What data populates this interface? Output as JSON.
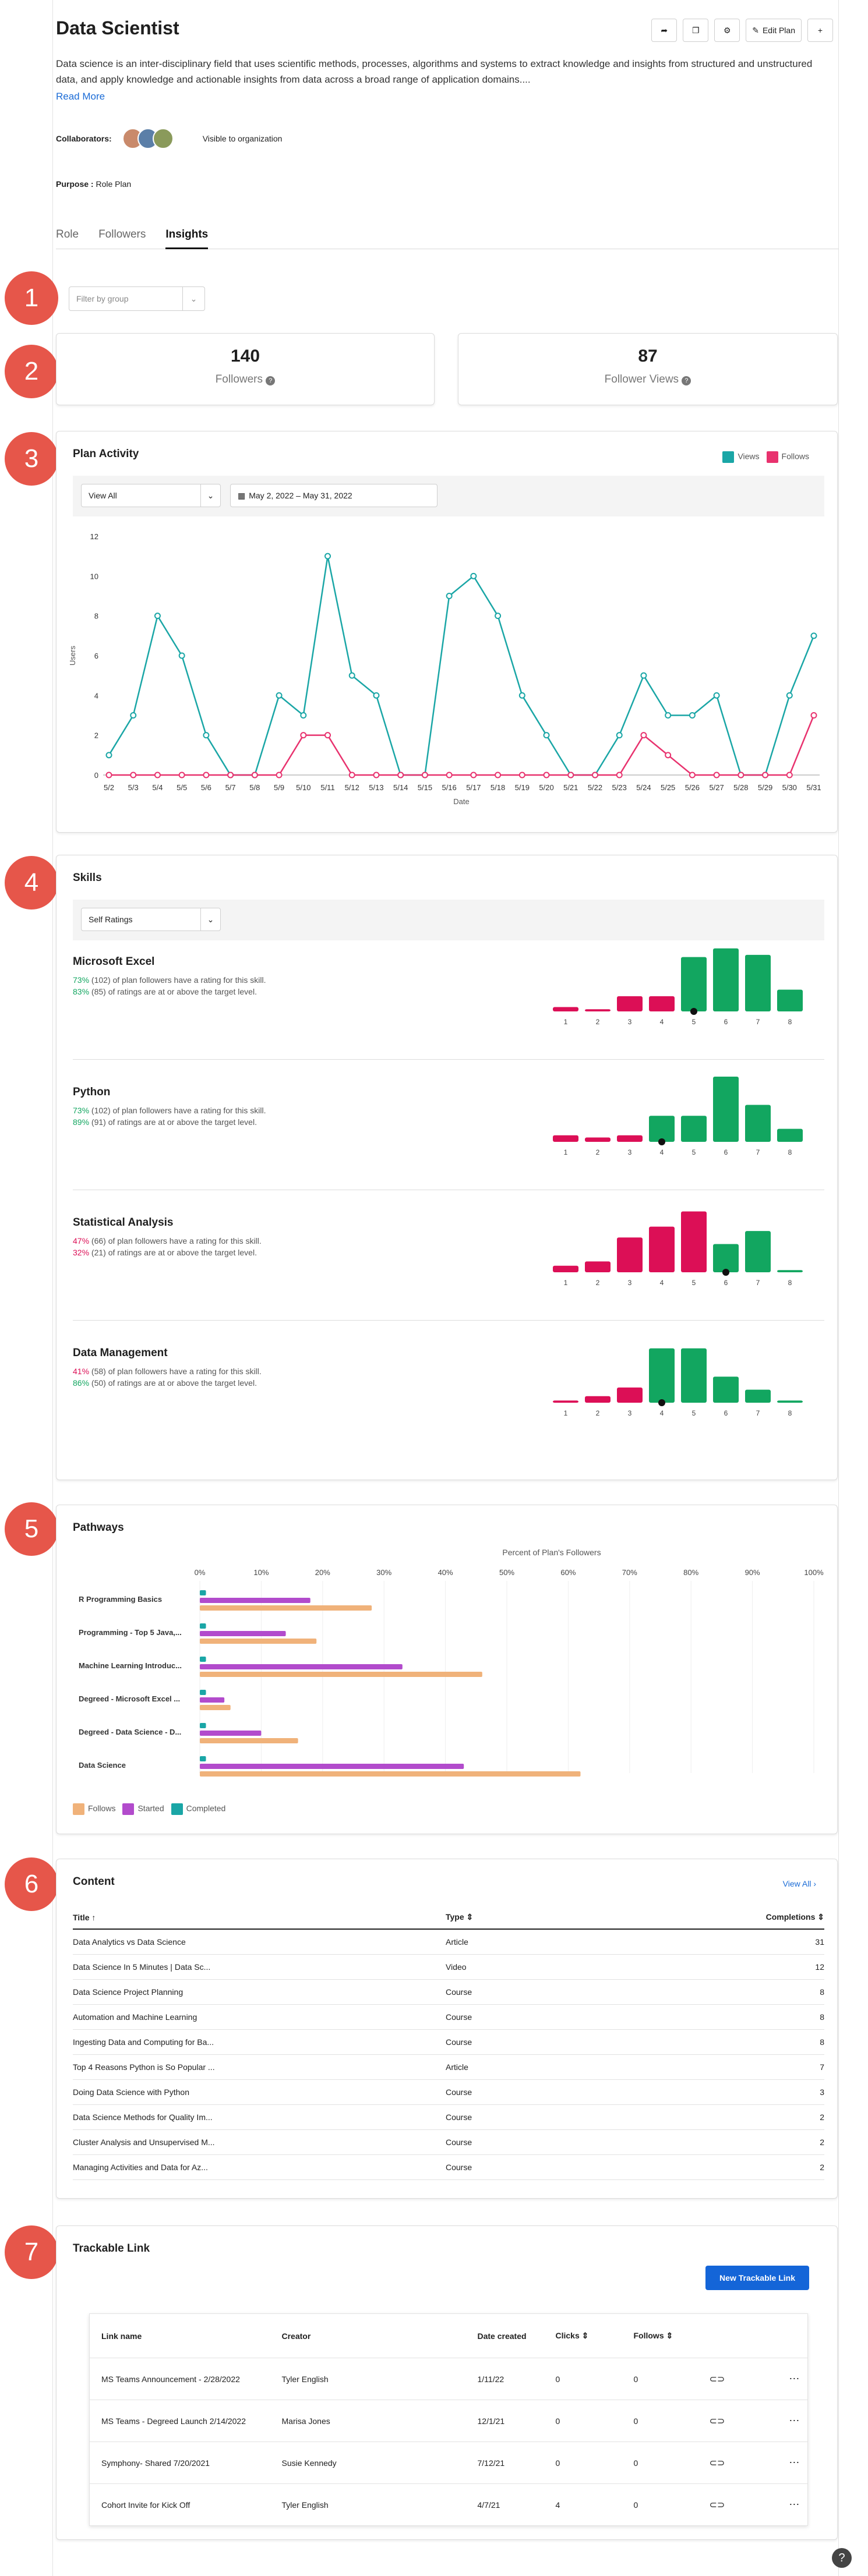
{
  "header": {
    "title": "Data Scientist",
    "edit_label": "Edit Plan",
    "description": "Data science is an inter-disciplinary field that uses scientific methods, processes, algorithms and systems to extract knowledge and insights from structured and unstructured data, and apply knowledge and actionable insights from data across a broad range of application domains....",
    "read_more": "Read More",
    "collaborators_label": "Collaborators:",
    "visibility": "Visible to organization",
    "purpose_label": "Purpose :",
    "purpose_value": "Role Plan"
  },
  "tabs": [
    {
      "label": "Role"
    },
    {
      "label": "Followers"
    },
    {
      "label": "Insights"
    }
  ],
  "filter": {
    "placeholder": "Filter by group"
  },
  "markers": [
    "1",
    "2",
    "3",
    "4",
    "5",
    "6",
    "7"
  ],
  "stats": {
    "followers": "140",
    "followers_label": "Followers",
    "views": "87",
    "views_label": "Follower Views"
  },
  "plan_activity": {
    "title": "Plan Activity",
    "view_select": "View All",
    "date_range": "May 2, 2022 – May 31, 2022",
    "legend": [
      "Views",
      "Follows"
    ]
  },
  "colors": {
    "views": "#1aa6a6",
    "follows": "#e8326e",
    "green": "#12a660",
    "red": "#dc0f56",
    "pathway_follows": "#f0b27a",
    "pathway_started": "#b24bcc",
    "pathway_completed": "#1aa6a6"
  },
  "chart_data": [
    {
      "type": "line",
      "x": [
        "5/2",
        "5/3",
        "5/4",
        "5/5",
        "5/6",
        "5/7",
        "5/8",
        "5/9",
        "5/10",
        "5/11",
        "5/12",
        "5/13",
        "5/14",
        "5/15",
        "5/16",
        "5/17",
        "5/18",
        "5/19",
        "5/20",
        "5/21",
        "5/22",
        "5/23",
        "5/24",
        "5/25",
        "5/26",
        "5/27",
        "5/28",
        "5/29",
        "5/30",
        "5/31"
      ],
      "series": [
        {
          "name": "Views",
          "values": [
            1,
            3,
            8,
            6,
            2,
            0,
            0,
            4,
            3,
            11,
            5,
            4,
            0,
            0,
            9,
            10,
            8,
            4,
            2,
            0,
            0,
            2,
            5,
            3,
            3,
            4,
            0,
            0,
            4,
            7
          ]
        },
        {
          "name": "Follows",
          "values": [
            0,
            0,
            0,
            0,
            0,
            0,
            0,
            0,
            2,
            2,
            0,
            0,
            0,
            0,
            0,
            0,
            0,
            0,
            0,
            0,
            0,
            0,
            2,
            1,
            0,
            0,
            0,
            0,
            0,
            3
          ]
        }
      ],
      "xlabel": "Date",
      "ylabel": "Users",
      "ylim": [
        0,
        12
      ],
      "yticks": [
        0,
        2,
        4,
        6,
        8,
        10,
        12
      ]
    },
    {
      "type": "bar",
      "title": "Pathways",
      "subtitle": "Percent of Plan's Followers",
      "categories": [
        "R Programming Basics",
        "Programming - Top 5 Java,...",
        "Machine Learning Introduc...",
        "Degreed - Microsoft Excel ...",
        "Degreed - Data Science - D...",
        "Data Science"
      ],
      "series": [
        {
          "name": "Completed",
          "values": [
            1,
            1,
            1,
            1,
            1,
            1
          ]
        },
        {
          "name": "Started",
          "values": [
            18,
            14,
            33,
            4,
            10,
            43
          ]
        },
        {
          "name": "Follows",
          "values": [
            28,
            19,
            46,
            5,
            16,
            62
          ]
        }
      ],
      "xticks": [
        "0%",
        "10%",
        "20%",
        "30%",
        "40%",
        "50%",
        "60%",
        "70%",
        "80%",
        "90%",
        "100%"
      ],
      "xlim": [
        0,
        100
      ]
    }
  ],
  "skills": {
    "title": "Skills",
    "select": "Self Ratings",
    "items": [
      {
        "name": "Microsoft Excel",
        "stat1_pct": "73%",
        "stat1_rest": " (102) of plan followers have a rating for this skill.",
        "stat1_color": "#12a660",
        "stat2_pct": "83%",
        "stat2_rest": " (85) of ratings are at or above the target level.",
        "stat2_color": "#12a660",
        "values": [
          2,
          1,
          7,
          7,
          25,
          29,
          26,
          10
        ],
        "target": 5
      },
      {
        "name": "Python",
        "stat1_pct": "73%",
        "stat1_rest": " (102) of plan followers have a rating for this skill.",
        "stat1_color": "#12a660",
        "stat2_pct": "89%",
        "stat2_rest": " (91) of ratings are at or above the target level.",
        "stat2_color": "#12a660",
        "values": [
          3,
          2,
          3,
          12,
          12,
          30,
          17,
          6
        ],
        "target": 4
      },
      {
        "name": "Statistical Analysis",
        "stat1_pct": "47%",
        "stat1_rest": " (66) of plan followers have a rating for this skill.",
        "stat1_color": "#dc0f56",
        "stat2_pct": "32%",
        "stat2_rest": " (21) of ratings are at or above the target level.",
        "stat2_color": "#dc0f56",
        "values": [
          3,
          5,
          16,
          21,
          28,
          13,
          19,
          1
        ],
        "target": 6
      },
      {
        "name": "Data Management",
        "stat1_pct": "41%",
        "stat1_rest": " (58) of plan followers have a rating for this skill.",
        "stat1_color": "#dc0f56",
        "stat2_pct": "86%",
        "stat2_rest": " (50) of ratings are at or above the target level.",
        "stat2_color": "#12a660",
        "values": [
          1,
          3,
          7,
          25,
          25,
          12,
          6,
          1
        ],
        "target": 4
      }
    ],
    "xticks": [
      "1",
      "2",
      "3",
      "4",
      "5",
      "6",
      "7",
      "8"
    ]
  },
  "pathways": {
    "title": "Pathways",
    "legend": [
      "Follows",
      "Started",
      "Completed"
    ]
  },
  "content": {
    "title": "Content",
    "view_all": "View All",
    "headers": [
      "Title ↑",
      "Type ⇕",
      "Completions ⇕"
    ],
    "rows": [
      [
        "Data Analytics vs Data Science",
        "Article",
        "31"
      ],
      [
        "Data Science In 5 Minutes | Data Sc...",
        "Video",
        "12"
      ],
      [
        "Data Science Project Planning",
        "Course",
        "8"
      ],
      [
        "Automation and Machine Learning",
        "Course",
        "8"
      ],
      [
        "Ingesting Data and Computing for Ba...",
        "Course",
        "8"
      ],
      [
        "Top 4 Reasons Python is So Popular ...",
        "Article",
        "7"
      ],
      [
        "Doing Data Science with Python",
        "Course",
        "3"
      ],
      [
        "Data Science Methods for Quality Im...",
        "Course",
        "2"
      ],
      [
        "Cluster Analysis and Unsupervised M...",
        "Course",
        "2"
      ],
      [
        "Managing Activities and Data for Az...",
        "Course",
        "2"
      ]
    ]
  },
  "links": {
    "title": "Trackable Link",
    "new_button": "New Trackable Link",
    "headers": [
      "Link name",
      "Creator",
      "Date created",
      "Clicks ⇕",
      "Follows ⇕"
    ],
    "rows": [
      [
        "MS Teams Announcement - 2/28/2022",
        "Tyler English",
        "1/11/22",
        "0",
        "0"
      ],
      [
        "MS Teams - Degreed Launch 2/14/2022",
        "Marisa Jones",
        "12/1/21",
        "0",
        "0"
      ],
      [
        "Symphony- Shared 7/20/2021",
        "Susie Kennedy",
        "7/12/21",
        "0",
        "0"
      ],
      [
        "Cohort Invite for Kick Off",
        "Tyler English",
        "4/7/21",
        "4",
        "0"
      ]
    ]
  },
  "help": "?"
}
